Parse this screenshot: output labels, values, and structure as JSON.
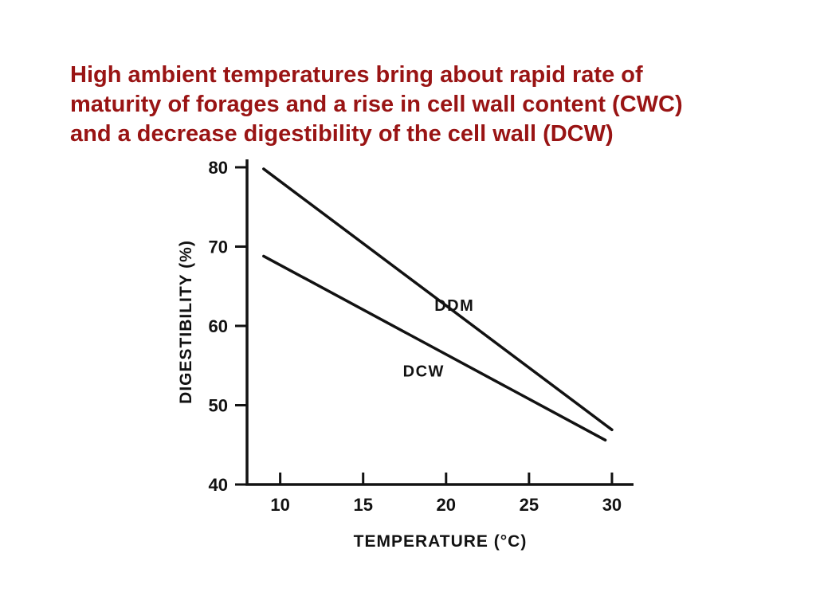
{
  "slide": {
    "title_lines": [
      "High ambient temperatures bring about rapid rate of",
      "maturity of forages and a rise in cell wall content (CWC)",
      "and a decrease digestibility of the cell wall (DCW)"
    ],
    "title_color": "#991414",
    "background_color": "#ffffff"
  },
  "chart_data": {
    "type": "line",
    "title": "",
    "xlabel": "TEMPERATURE (°C)",
    "ylabel": "DIGESTIBILITY (%)",
    "xlim": [
      8,
      31.3
    ],
    "ylim": [
      40,
      81
    ],
    "x_ticks": [
      10,
      15,
      20,
      25,
      30
    ],
    "y_ticks": [
      40,
      50,
      60,
      70,
      80
    ],
    "grid": false,
    "legend": "inline-labels",
    "line_color": "#121212",
    "series": [
      {
        "name": "DDM",
        "x": [
          9,
          30
        ],
        "y": [
          79.8,
          46.9
        ],
        "label_pos": {
          "x": 19.3,
          "y": 61.9
        }
      },
      {
        "name": "DCW",
        "x": [
          9,
          29.6
        ],
        "y": [
          68.8,
          45.6
        ],
        "label_pos": {
          "x": 17.4,
          "y": 53.6
        }
      }
    ]
  }
}
